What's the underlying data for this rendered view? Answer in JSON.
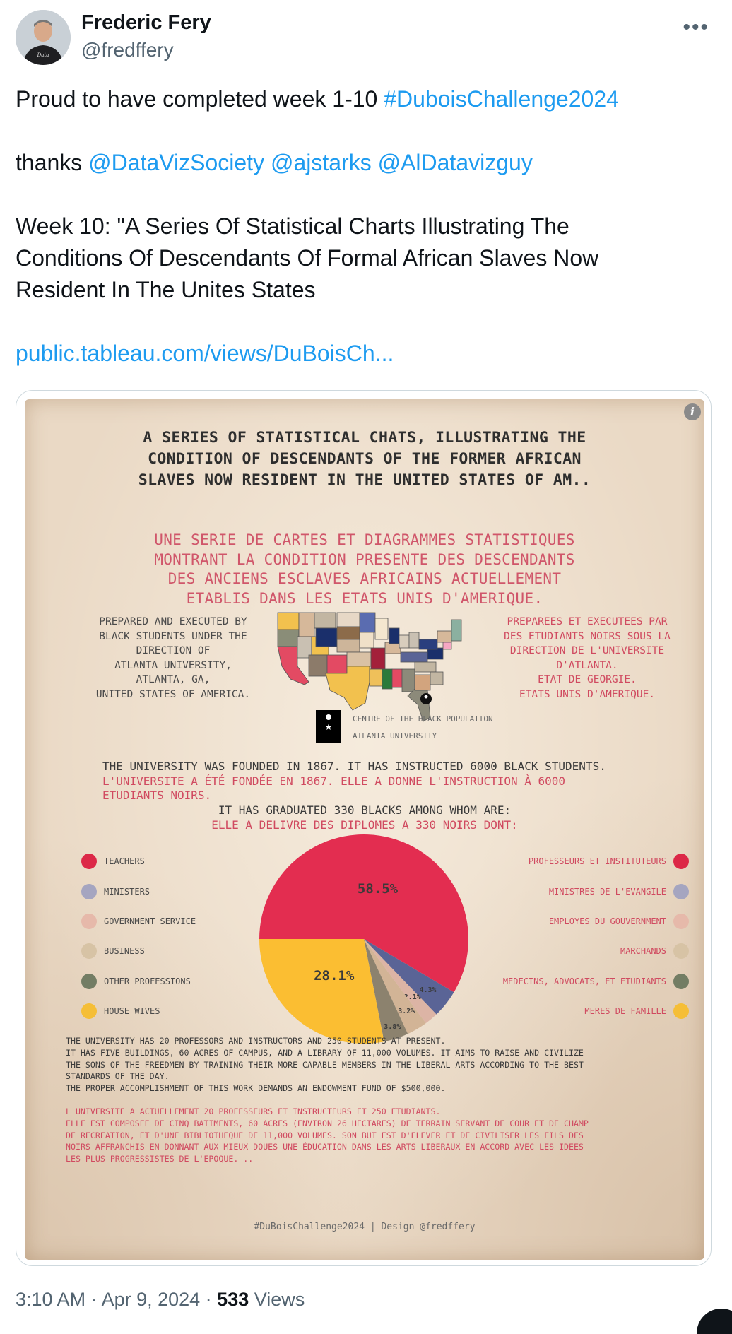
{
  "author": {
    "name": "Frederic Fery",
    "handle": "@fredffery"
  },
  "tweet": {
    "line1_prefix": "Proud to have completed  week 1-10 ",
    "hashtag": "#DuboisChallenge2024",
    "thanks_prefix": "thanks ",
    "mention1": "@DataVizSociety",
    "mention2": "@ajstarks",
    "mention3": "@AlDatavizguy",
    "week_line1": "Week 10:  \"A Series Of Statistical Charts Illustrating The",
    "week_line2": "Conditions Of Descendants Of Formal African Slaves Now",
    "week_line3": "Resident In The Unites States",
    "url": "public.tableau.com/views/DuBoisCh..."
  },
  "media": {
    "info_icon": "info-icon",
    "title_en": [
      "A SERIES OF STATISTICAL CHATS, ILLUSTRATING THE",
      "CONDITION OF DESCENDANTS OF THE FORMER AFRICAN",
      "SLAVES NOW RESIDENT IN THE UNITED STATES OF AM.."
    ],
    "title_fr": [
      "UNE SERIE DE CARTES ET DIAGRAMMES STATISTIQUES",
      "MONTRANT LA CONDITION PRESENTE DES DESCENDANTS",
      "DES ANCIENS ESCLAVES AFRICAINS ACTUELLEMENT",
      "ETABLIS DANS LES ETATS UNIS D'AMERIQUE."
    ],
    "prepared_en": [
      "PREPARED AND EXECUTED BY",
      "BLACK STUDENTS UNDER THE",
      "DIRECTION OF",
      "ATLANTA UNIVERSITY,",
      "ATLANTA, GA,",
      "UNITED STATES OF AMERICA."
    ],
    "prepared_fr": [
      "PREPAREES ET EXECUTEES PAR",
      "DES ETUDIANTS NOIRS SOUS LA",
      "DIRECTION DE L'UNIVERSITE",
      "D'ATLANTA.",
      "ETAT DE GEORGIE.",
      "ETATS UNIS D'AMERIQUE."
    ],
    "map_note1": "CENTRE OF THE BLACK POPULATION",
    "map_note2": "ATLANTA UNIVERSITY",
    "founded_en": "THE UNIVERSITY WAS FOUNDED IN 1867. IT HAS INSTRUCTED 6000 BLACK STUDENTS.",
    "founded_fr1": "L'UNIVERSITE A ÉTÉ FONDÉE EN 1867. ELLE A DONNE L'INSTRUCTION À 6000",
    "founded_fr2": "ETUDIANTS NOIRS.",
    "graduated_en": "IT HAS GRADUATED 330 BLACKS AMONG WHOM ARE:",
    "graduated_fr": "ELLE A DELIVRE DES DIPLOMES A 330 NOIRS DONT:",
    "legend_en": [
      "TEACHERS",
      "MINISTERS",
      "GOVERNMENT SERVICE",
      "BUSINESS",
      "OTHER PROFESSIONS",
      "HOUSE WIVES"
    ],
    "legend_fr": [
      "PROFESSEURS ET INSTITUTEURS",
      "MINISTRES DE L'EVANGILE",
      "EMPLOYES DU GOUVERNMENT",
      "MARCHANDS",
      "MEDECINS, ADVOCATS, ET ETUDIANTS",
      "MERES DE FAMILLE"
    ],
    "para_en": [
      "THE UNIVERSITY HAS 20 PROFESSORS AND INSTRUCTORS AND 250 STUDENTS AT PRESENT.",
      "IT HAS FIVE BUILDINGS, 60 ACRES OF CAMPUS, AND A LIBRARY OF 11,000 VOLUMES. IT AIMS TO RAISE AND CIVILIZE",
      "THE SONS OF THE FREEDMEN BY TRAINING THEIR MORE CAPABLE MEMBERS IN THE LIBERAL ARTS ACCORDING TO THE BEST",
      "STANDARDS OF THE DAY.",
      "THE PROPER ACCOMPLISHMENT OF THIS WORK DEMANDS AN ENDOWMENT FUND OF $500,000."
    ],
    "para_fr": [
      "L'UNIVERSITE A ACTUELLEMENT 20 PROFESSEURS ET INSTRUCTEURS ET 250 ETUDIANTS.",
      "ELLE EST COMPOSEE DE CINQ BATIMENTS, 60 ACRES (ENVIRON 26 HECTARES) DE TERRAIN SERVANT DE COUR ET DE CHAMP",
      "DE RECREATION, ET D'UNE BIBLIOTHEQUE DE 11,000 VOLUMES. SON BUT EST D'ELEVER ET DE CIVILISER LES FILS DES",
      "NOIRS AFFRANCHIS EN DONNANT AUX MIEUX DOUES UNE ÉDUCATION DANS LES ARTS LIBERAUX EN ACCORD AVEC LES IDEES",
      "LES PLUS PROGRESSISTES DE L'EPOQUE. .."
    ],
    "footer": "#DuBoisChallenge2024 | Design @fredffery"
  },
  "chart_data": {
    "type": "pie",
    "categories": [
      "TEACHERS",
      "MINISTERS",
      "GOVERNMENT SERVICE",
      "BUSINESS",
      "OTHER PROFESSIONS",
      "HOUSE WIVES"
    ],
    "values": [
      58.5,
      4.3,
      2.1,
      3.2,
      3.8,
      28.1
    ],
    "labels": [
      "58.5%",
      "4.3%",
      "2.1%",
      "3.2%",
      "3.8%",
      "28.1%"
    ],
    "colors": [
      "#e32d50",
      "#5a6496",
      "#dcb4a5",
      "#d2b496",
      "#8c826e",
      "#fbbe32"
    ],
    "legend_colors": [
      "#dc2847",
      "#a5a5c0",
      "#e6b9aa",
      "#d7c3a5",
      "#737d64",
      "#f5be37"
    ]
  },
  "meta": {
    "time": "3:10 AM · Apr 9, 2024 · ",
    "views_count": "533",
    "views_label": " Views"
  }
}
